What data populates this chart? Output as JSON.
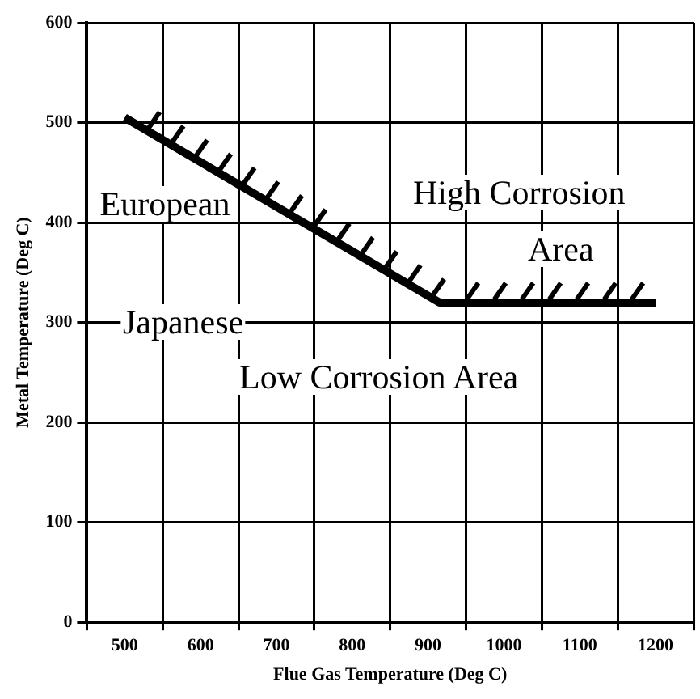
{
  "chart_data": {
    "type": "line",
    "xlabel": "Flue Gas Temperature (Deg C)",
    "ylabel": "Metal Temperature (Deg C)",
    "series": [
      {
        "x": [
          500,
          915,
          1200
        ],
        "values": [
          505,
          320,
          320
        ],
        "color": "#000000"
      }
    ],
    "xlim": [
      450,
      1250
    ],
    "xticks": [
      {
        "value": 450,
        "label": null
      },
      500,
      {
        "value": 550,
        "label": null
      },
      600,
      {
        "value": 650,
        "label": null
      },
      700,
      {
        "value": 750,
        "label": null
      },
      800,
      {
        "value": 850,
        "label": null
      },
      900,
      {
        "value": 950,
        "label": null
      },
      1000,
      {
        "value": 1050,
        "label": null
      },
      1100,
      {
        "value": 1150,
        "label": null
      },
      1200,
      {
        "value": 1250,
        "label": null
      }
    ],
    "ylim": [
      0,
      600
    ],
    "yticks": [
      0,
      100,
      200,
      300,
      400,
      500,
      600
    ],
    "grid": true,
    "legend": false,
    "marker": "none",
    "line_style": "solid",
    "annotations": [
      "European",
      "Japanese",
      "High Corrosion",
      "Area",
      "Low Corrosion Area"
    ]
  }
}
